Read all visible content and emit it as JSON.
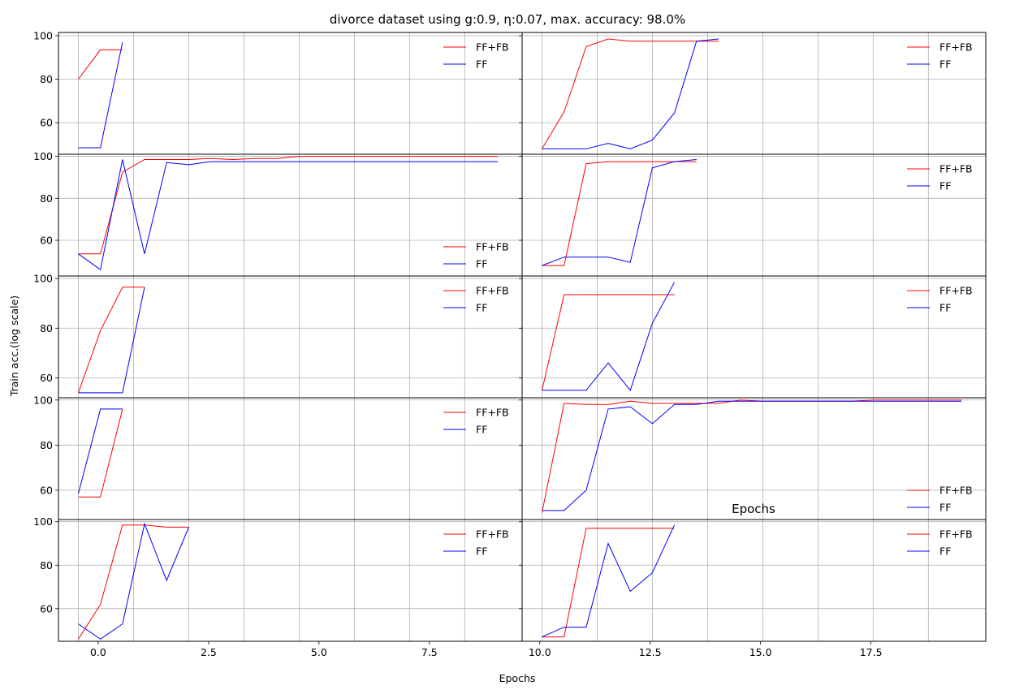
{
  "chart_data": {
    "type": "line",
    "title": "divorce dataset using g:0.9, η:0.07, max. accuracy: 98.0%",
    "xlabel": "Epochs",
    "ylabel": "Train acc.(log scale)",
    "overlay_label": "Epochs",
    "xlim": [
      -0.9,
      20.1
    ],
    "xticks": [
      0.0,
      2.5,
      5.0,
      7.5,
      10.0,
      12.5,
      15.0,
      17.5
    ],
    "xtick_labels": [
      "0.0",
      "2.5",
      "5.0",
      "7.5",
      "10.0",
      "12.5",
      "15.0",
      "17.5"
    ],
    "yticks": [
      60,
      80,
      100
    ],
    "grid": true,
    "rows": 5,
    "cols": 2,
    "colors": {
      "FF+FB": "#ff0000",
      "FF": "#0000ff"
    },
    "panels": [
      {
        "ylim": [
          45.5,
          101.5
        ],
        "legend": "upper-right",
        "series": [
          {
            "name": "FF+FB",
            "x": [
              0,
              1,
              2
            ],
            "y": [
              80,
              93.5,
              93.5
            ]
          },
          {
            "name": "FF",
            "x": [
              0,
              1,
              2
            ],
            "y": [
              48.5,
              48.5,
              97
            ]
          }
        ]
      },
      {
        "ylim": [
          45.5,
          101.5
        ],
        "legend": "upper-right",
        "series": [
          {
            "name": "FF+FB",
            "x": [
              0,
              1,
              2,
              3,
              4,
              5,
              6,
              7,
              8
            ],
            "y": [
              48,
              65,
              95,
              98.5,
              97.5,
              97.5,
              97.5,
              97.5,
              97.5
            ]
          },
          {
            "name": "FF",
            "x": [
              0,
              1,
              2,
              3,
              4,
              5,
              6,
              7,
              8
            ],
            "y": [
              48,
              48,
              48,
              50.5,
              48,
              52,
              64.5,
              97.5,
              98.5
            ]
          }
        ]
      },
      {
        "ylim": [
          43,
          101
        ],
        "legend": "lower-right",
        "series": [
          {
            "name": "FF+FB",
            "x": [
              0,
              1,
              2,
              3,
              4,
              5,
              6,
              7,
              8,
              9,
              10,
              11,
              12,
              13,
              14,
              15,
              16,
              17,
              18,
              19
            ],
            "y": [
              53.5,
              53.5,
              92.5,
              98.5,
              98.5,
              98.5,
              99,
              98.5,
              99,
              99,
              100,
              100,
              100,
              100,
              100,
              100,
              100,
              100,
              100,
              100
            ]
          },
          {
            "name": "FF",
            "x": [
              0,
              1,
              2,
              3,
              4,
              5,
              6,
              7,
              8,
              9,
              10,
              11,
              12,
              13,
              14,
              15,
              16,
              17,
              18,
              19
            ],
            "y": [
              53.5,
              46,
              98.5,
              53.5,
              97,
              96,
              97.5,
              97.5,
              97.5,
              97.5,
              97.5,
              97.5,
              97.5,
              97.5,
              97.5,
              97.5,
              97.5,
              97.5,
              97.5,
              97.5
            ]
          }
        ]
      },
      {
        "ylim": [
          43,
          101
        ],
        "legend": "upper-right",
        "series": [
          {
            "name": "FF+FB",
            "x": [
              0,
              1,
              2,
              3,
              4,
              5,
              6,
              7
            ],
            "y": [
              48,
              48,
              96.5,
              97.5,
              97.5,
              97.5,
              97.5,
              97.5
            ]
          },
          {
            "name": "FF",
            "x": [
              0,
              1,
              2,
              3,
              4,
              5,
              6,
              7
            ],
            "y": [
              48,
              52,
              52,
              52,
              49.5,
              94.5,
              97.5,
              98.5
            ]
          }
        ]
      },
      {
        "ylim": [
          52,
          101
        ],
        "legend": "upper-right",
        "series": [
          {
            "name": "FF+FB",
            "x": [
              0,
              1,
              2,
              3
            ],
            "y": [
              54,
              79,
              96.5,
              96.5
            ]
          },
          {
            "name": "FF",
            "x": [
              0,
              1,
              2,
              3
            ],
            "y": [
              54,
              54,
              54,
              96.5
            ]
          }
        ]
      },
      {
        "ylim": [
          52,
          101
        ],
        "legend": "upper-right",
        "series": [
          {
            "name": "FF+FB",
            "x": [
              0,
              1,
              2,
              3,
              4,
              5,
              6
            ],
            "y": [
              55,
              93.5,
              93.5,
              93.5,
              93.5,
              93.5,
              93.5
            ]
          },
          {
            "name": "FF",
            "x": [
              0,
              1,
              2,
              3,
              4,
              5,
              6
            ],
            "y": [
              55,
              55,
              55,
              66,
              55,
              82,
              98.5
            ]
          }
        ]
      },
      {
        "ylim": [
          47,
          101
        ],
        "legend": "upper-right",
        "series": [
          {
            "name": "FF+FB",
            "x": [
              0,
              1,
              2
            ],
            "y": [
              57,
              57,
              96
            ]
          },
          {
            "name": "FF",
            "x": [
              0,
              1,
              2
            ],
            "y": [
              58.5,
              96,
              96
            ]
          }
        ]
      },
      {
        "ylim": [
          47,
          101
        ],
        "legend": "lower-right",
        "series": [
          {
            "name": "FF+FB",
            "x": [
              0,
              1,
              2,
              3,
              4,
              5,
              6,
              7,
              8,
              9,
              10,
              11,
              12,
              13,
              14,
              15,
              16,
              17,
              18,
              19
            ],
            "y": [
              50,
              98.5,
              98,
              98,
              99.5,
              98.5,
              98.5,
              98.5,
              98.5,
              100,
              99.5,
              99.5,
              99.5,
              99.5,
              99.5,
              100,
              100,
              100,
              100,
              100
            ]
          },
          {
            "name": "FF",
            "x": [
              0,
              1,
              2,
              3,
              4,
              5,
              6,
              7,
              8,
              9,
              10,
              11,
              12,
              13,
              14,
              15,
              16,
              17,
              18,
              19
            ],
            "y": [
              51,
              51,
              60,
              96,
              97,
              89.5,
              98,
              98,
              99.5,
              99.5,
              99.5,
              99.5,
              99.5,
              99.5,
              99.5,
              99.5,
              99.5,
              99.5,
              99.5,
              99.5
            ]
          }
        ]
      },
      {
        "ylim": [
          45,
          101
        ],
        "legend": "upper-right",
        "series": [
          {
            "name": "FF+FB",
            "x": [
              0,
              1,
              2,
              3,
              4,
              5
            ],
            "y": [
              46,
              62,
              98.5,
              98.5,
              97.5,
              97.5
            ]
          },
          {
            "name": "FF",
            "x": [
              0,
              1,
              2,
              3,
              4,
              5
            ],
            "y": [
              53,
              46,
              53,
              99,
              73,
              97.5
            ]
          }
        ]
      },
      {
        "ylim": [
          45,
          101
        ],
        "legend": "upper-right",
        "series": [
          {
            "name": "FF+FB",
            "x": [
              0,
              1,
              2,
              3,
              4,
              5,
              6
            ],
            "y": [
              47,
              47,
              97,
              97,
              97,
              97,
              97
            ]
          },
          {
            "name": "FF",
            "x": [
              0,
              1,
              2,
              3,
              4,
              5,
              6
            ],
            "y": [
              47,
              51.5,
              51.5,
              90,
              68,
              76.5,
              98.5
            ]
          }
        ]
      }
    ]
  }
}
